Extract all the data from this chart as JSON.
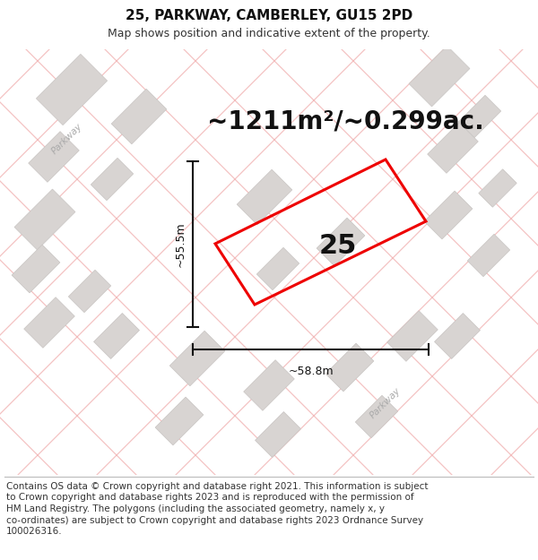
{
  "title": "25, PARKWAY, CAMBERLEY, GU15 2PD",
  "subtitle": "Map shows position and indicative extent of the property.",
  "area_text": "~1211m²/~0.299ac.",
  "label_number": "25",
  "dim_width": "~58.8m",
  "dim_height": "~55.5m",
  "road_label1": "Parkway",
  "road_label2": "Parkway",
  "footer_lines": [
    "Contains OS data © Crown copyright and database right 2021. This information is subject",
    "to Crown copyright and database rights 2023 and is reproduced with the permission of",
    "HM Land Registry. The polygons (including the associated geometry, namely x, y",
    "co-ordinates) are subject to Crown copyright and database rights 2023 Ordnance Survey",
    "100026316."
  ],
  "map_bg": "#f5f0ee",
  "building_color": "#d8d4d2",
  "building_edge": "#c8c4c2",
  "road_line_color": "#f0a8a8",
  "road_line_alpha": 0.7,
  "plot_color": "#ee0000",
  "dim_color": "#111111",
  "white_bg": "#ffffff",
  "footer_line_color": "#bbbbbb",
  "title_fontsize": 11,
  "subtitle_fontsize": 9,
  "area_fontsize": 20,
  "label_fontsize": 22,
  "dim_fontsize": 9,
  "road_label_fontsize": 7.5,
  "footer_fontsize": 7.5
}
